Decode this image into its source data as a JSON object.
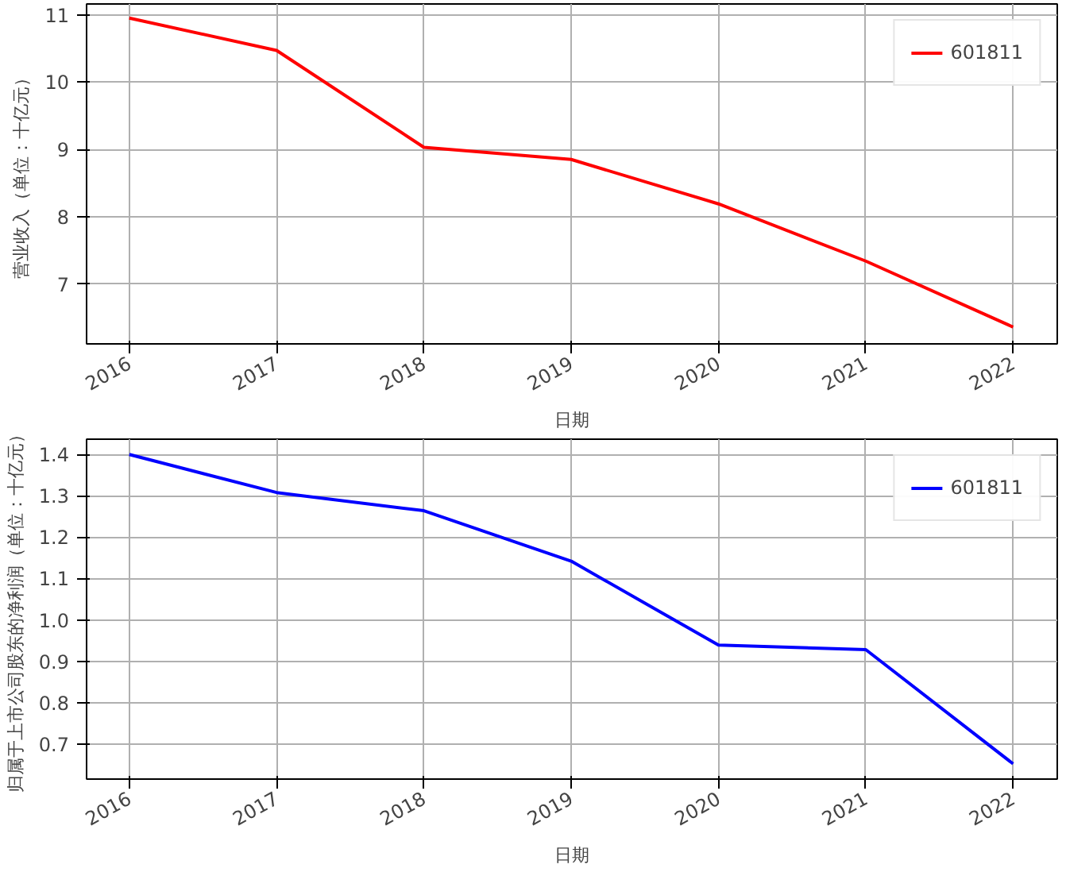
{
  "chart_data": [
    {
      "type": "line",
      "xlabel": "日期",
      "ylabel": "营业收入（单位：十亿元）",
      "x": [
        2016,
        2017,
        2018,
        2019,
        2020,
        2021,
        2022
      ],
      "series": [
        {
          "name": "601811",
          "color": "#ff0000",
          "values": [
            10.95,
            10.47,
            9.03,
            8.85,
            8.19,
            7.34,
            6.36
          ]
        }
      ],
      "xlim": [
        2015.71,
        2022.3
      ],
      "xticks": [
        2016,
        2017,
        2018,
        2019,
        2020,
        2021,
        2022
      ],
      "ylim": [
        6.11,
        11.16
      ],
      "yticks": [
        7,
        8,
        9,
        10,
        11
      ],
      "grid": true,
      "legend": "top right"
    },
    {
      "type": "line",
      "xlabel": "日期",
      "ylabel": "归属于上市公司股东的净利润（单位：十亿元）",
      "x": [
        2016,
        2017,
        2018,
        2019,
        2020,
        2021,
        2022
      ],
      "series": [
        {
          "name": "601811",
          "color": "#0000ff",
          "values": [
            1.4,
            1.308,
            1.264,
            1.142,
            0.939,
            0.928,
            0.652
          ]
        }
      ],
      "xlim": [
        2015.71,
        2022.3
      ],
      "xticks": [
        2016,
        2017,
        2018,
        2019,
        2020,
        2021,
        2022
      ],
      "ylim": [
        0.615,
        1.437
      ],
      "yticks": [
        0.7,
        0.8,
        0.9,
        {
          "value": 1.0,
          "label": "1.0"
        },
        1.1,
        1.2,
        1.3,
        1.4
      ],
      "grid": true,
      "legend": "top right"
    }
  ]
}
